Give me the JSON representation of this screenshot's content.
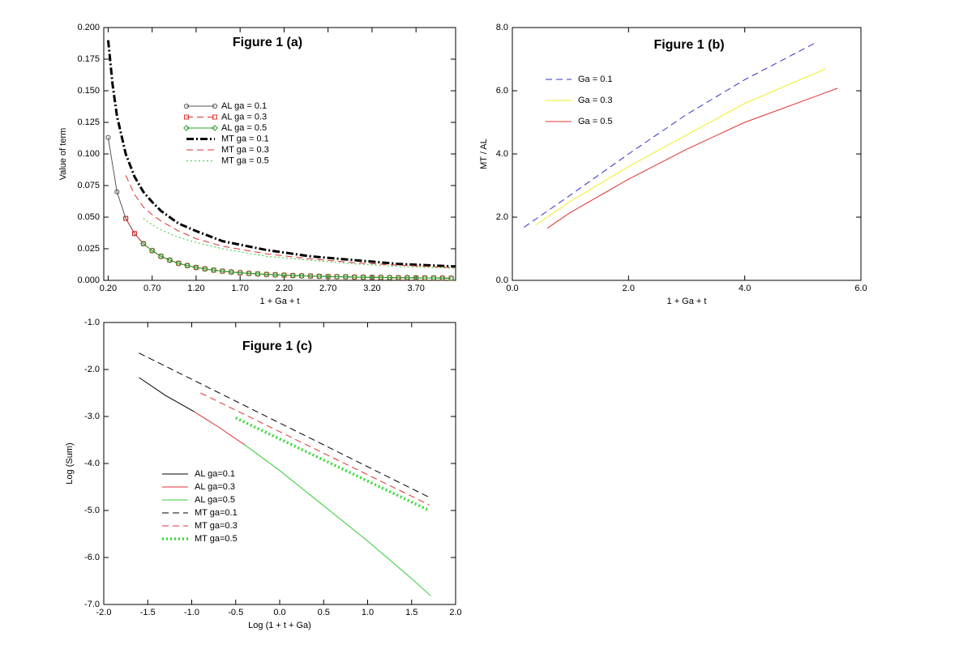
{
  "chart_data": [
    {
      "type": "line",
      "title": "Figure 1 (a)",
      "x_label": "1 + Ga + t",
      "y_label": "Value of term",
      "xlim": [
        0.15,
        4.15
      ],
      "xticks": [
        {
          "value": 0.2,
          "label": "0.20"
        },
        {
          "value": 0.7,
          "label": "0.70"
        },
        {
          "value": 1.2,
          "label": "1.20"
        },
        {
          "value": 1.7,
          "label": "1.70"
        },
        {
          "value": 2.2,
          "label": "2.20"
        },
        {
          "value": 2.7,
          "label": "2.70"
        },
        {
          "value": 3.2,
          "label": "3.20"
        },
        {
          "value": 3.7,
          "label": "3.70"
        }
      ],
      "ylim": [
        0,
        0.2
      ],
      "yticks": [
        {
          "value": 0,
          "label": "0.000"
        },
        {
          "value": 0.025,
          "label": "0.025"
        },
        {
          "value": 0.05,
          "label": "0.050"
        },
        {
          "value": 0.075,
          "label": "0.075"
        },
        {
          "value": 0.1,
          "label": "0.100"
        },
        {
          "value": 0.125,
          "label": "0.125"
        },
        {
          "value": 0.15,
          "label": "0.150"
        },
        {
          "value": 0.175,
          "label": "0.175"
        },
        {
          "value": 0.2,
          "label": "0.200"
        }
      ],
      "series": [
        {
          "name": "AL ga = 0.1",
          "color": "#555555",
          "dash": "solid",
          "width": 1,
          "marker": "circle",
          "x": [
            0.2,
            0.3,
            0.4,
            0.5,
            0.6,
            0.7,
            0.8,
            0.9,
            1.0,
            1.1,
            1.2,
            1.3,
            1.4,
            1.5,
            1.6,
            1.7,
            1.8,
            1.9,
            2.0,
            2.1,
            2.2,
            2.3,
            2.4,
            2.5,
            2.6,
            2.7,
            2.8,
            2.9,
            3.0,
            3.1,
            3.2,
            3.3,
            3.4,
            3.5,
            3.6,
            3.7,
            3.8,
            3.9,
            4.0,
            4.1
          ],
          "values": [
            0.113,
            0.07,
            0.049,
            0.037,
            0.029,
            0.0235,
            0.019,
            0.016,
            0.0135,
            0.0117,
            0.0102,
            0.0091,
            0.0081,
            0.0073,
            0.0066,
            0.006,
            0.0055,
            0.0051,
            0.0047,
            0.0044,
            0.0041,
            0.0038,
            0.0036,
            0.0034,
            0.0032,
            0.003,
            0.0029,
            0.0028,
            0.0026,
            0.0025,
            0.0024,
            0.0023,
            0.0022,
            0.0021,
            0.0021,
            0.002,
            0.0019,
            0.0019,
            0.0018,
            0.0017
          ]
        },
        {
          "name": "AL ga = 0.3",
          "color": "#e03030",
          "dash": "dashed",
          "width": 1,
          "marker": "square",
          "x": [
            0.4,
            0.5,
            0.6,
            0.7,
            0.8,
            0.9,
            1.0,
            1.1,
            1.2,
            1.3,
            1.4,
            1.5,
            1.6,
            1.7,
            1.8,
            1.9,
            2.0,
            2.1,
            2.2,
            2.3,
            2.4,
            2.5,
            2.6,
            2.7,
            2.8,
            2.9,
            3.0,
            3.1,
            3.2,
            3.3,
            3.4,
            3.5,
            3.6,
            3.7,
            3.8,
            3.9,
            4.0,
            4.1
          ],
          "values": [
            0.049,
            0.037,
            0.029,
            0.0235,
            0.019,
            0.016,
            0.0135,
            0.0117,
            0.0102,
            0.0091,
            0.0081,
            0.0073,
            0.0066,
            0.006,
            0.0055,
            0.0051,
            0.0047,
            0.0044,
            0.0041,
            0.0038,
            0.0036,
            0.0034,
            0.0032,
            0.003,
            0.0029,
            0.0028,
            0.0026,
            0.0025,
            0.0024,
            0.0023,
            0.0022,
            0.0021,
            0.0021,
            0.002,
            0.0019,
            0.0019,
            0.0018,
            0.0017
          ]
        },
        {
          "name": "AL ga = 0.5",
          "color": "#2e9e2e",
          "dash": "solid",
          "width": 1,
          "marker": "diamond",
          "x": [
            0.6,
            0.7,
            0.8,
            0.9,
            1.0,
            1.1,
            1.2,
            1.3,
            1.4,
            1.5,
            1.6,
            1.7,
            1.8,
            1.9,
            2.0,
            2.1,
            2.2,
            2.3,
            2.4,
            2.5,
            2.6,
            2.7,
            2.8,
            2.9,
            3.0,
            3.1,
            3.2,
            3.3,
            3.4,
            3.5,
            3.6,
            3.7,
            3.8,
            3.9,
            4.0,
            4.1
          ],
          "values": [
            0.029,
            0.0235,
            0.019,
            0.016,
            0.0135,
            0.0117,
            0.0102,
            0.0091,
            0.0081,
            0.0073,
            0.0066,
            0.006,
            0.0055,
            0.0051,
            0.0047,
            0.0044,
            0.0041,
            0.0038,
            0.0036,
            0.0034,
            0.0032,
            0.003,
            0.0029,
            0.0028,
            0.0026,
            0.0025,
            0.0024,
            0.0023,
            0.0022,
            0.0021,
            0.0021,
            0.002,
            0.0019,
            0.0019,
            0.0018,
            0.0017
          ]
        },
        {
          "name": "MT ga = 0.1",
          "color": "#000000",
          "dash": "dashdot",
          "width": 3,
          "x": [
            0.2,
            0.25,
            0.3,
            0.4,
            0.5,
            0.6,
            0.7,
            0.8,
            1.0,
            1.2,
            1.5,
            2.0,
            2.5,
            3.0,
            3.5,
            4.15
          ],
          "values": [
            0.19,
            0.155,
            0.13,
            0.1,
            0.082,
            0.07,
            0.062,
            0.055,
            0.045,
            0.039,
            0.031,
            0.024,
            0.019,
            0.016,
            0.013,
            0.011
          ]
        },
        {
          "name": "MT ga = 0.3",
          "color": "#e03030",
          "dash": "dashed",
          "width": 1,
          "x": [
            0.4,
            0.5,
            0.6,
            0.7,
            0.8,
            1.0,
            1.2,
            1.5,
            2.0,
            2.5,
            3.0,
            3.5,
            4.15
          ],
          "values": [
            0.083,
            0.068,
            0.058,
            0.052,
            0.047,
            0.039,
            0.033,
            0.027,
            0.021,
            0.017,
            0.014,
            0.012,
            0.01
          ]
        },
        {
          "name": "MT ga = 0.5",
          "color": "#33cc33",
          "dash": "dotted",
          "width": 1,
          "x": [
            0.6,
            0.7,
            0.8,
            1.0,
            1.2,
            1.5,
            2.0,
            2.5,
            3.0,
            3.5,
            4.15
          ],
          "values": [
            0.049,
            0.044,
            0.04,
            0.034,
            0.03,
            0.025,
            0.019,
            0.016,
            0.013,
            0.011,
            0.0095
          ]
        }
      ]
    },
    {
      "type": "line",
      "title": "Figure 1 (b)",
      "x_label": "1 + Ga + t",
      "y_label": "MT / AL",
      "xlim": [
        0,
        6
      ],
      "xticks": [
        {
          "value": 0,
          "label": "0.0"
        },
        {
          "value": 2,
          "label": "2.0"
        },
        {
          "value": 4,
          "label": "4.0"
        },
        {
          "value": 6,
          "label": "6.0"
        }
      ],
      "ylim": [
        0,
        8
      ],
      "yticks": [
        {
          "value": 0,
          "label": "0.0"
        },
        {
          "value": 2,
          "label": "2.0"
        },
        {
          "value": 4,
          "label": "4.0"
        },
        {
          "value": 6,
          "label": "6.0"
        },
        {
          "value": 8,
          "label": "8.0"
        }
      ],
      "series": [
        {
          "name": "Ga = 0.1",
          "color": "#3333cc",
          "dash": "dashed",
          "width": 1,
          "x": [
            0.2,
            1.0,
            2.0,
            3.0,
            4.0,
            5.2
          ],
          "values": [
            1.68,
            2.7,
            4.0,
            5.25,
            6.35,
            7.5
          ]
        },
        {
          "name": "Ga = 0.3",
          "color": "#eeee22",
          "dash": "solid",
          "width": 1,
          "x": [
            0.4,
            1.0,
            2.0,
            3.0,
            4.0,
            5.4
          ],
          "values": [
            1.75,
            2.5,
            3.6,
            4.6,
            5.6,
            6.7
          ]
        },
        {
          "name": "Ga = 0.5",
          "color": "#e03030",
          "dash": "solid",
          "width": 1,
          "x": [
            0.6,
            1.0,
            2.0,
            3.0,
            4.0,
            5.6
          ],
          "values": [
            1.65,
            2.15,
            3.2,
            4.15,
            5.0,
            6.08
          ]
        }
      ]
    },
    {
      "type": "line",
      "title": "Figure 1 (c)",
      "x_label": "Log (1 + t + Ga)",
      "y_label": "Log (Sum)",
      "xlim": [
        -2,
        2
      ],
      "xticks": [
        {
          "value": -2,
          "label": "-2.0"
        },
        -1.5,
        {
          "value": -1,
          "label": "-1.0"
        },
        -0.5,
        {
          "value": 0,
          "label": "0.0"
        },
        0.5,
        {
          "value": 1,
          "label": "1.0"
        },
        1.5,
        {
          "value": 2,
          "label": "2.0"
        }
      ],
      "ylim": [
        -7,
        -1
      ],
      "yticks": [
        {
          "value": -7,
          "label": "-7.0"
        },
        {
          "value": -6,
          "label": "-6.0"
        },
        {
          "value": -5,
          "label": "-5.0"
        },
        {
          "value": -4,
          "label": "-4.0"
        },
        {
          "value": -3,
          "label": "-3.0"
        },
        {
          "value": -2,
          "label": "-2.0"
        },
        {
          "value": -1,
          "label": "-1.0"
        }
      ],
      "series": [
        {
          "name": "AL ga=0.1",
          "color": "#000000",
          "dash": "solid",
          "width": 1,
          "x": [
            -1.6,
            -1.3,
            -0.97
          ],
          "values": [
            -2.17,
            -2.55,
            -2.9
          ]
        },
        {
          "name": "AL ga=0.3",
          "color": "#e03030",
          "dash": "solid",
          "width": 1,
          "x": [
            -0.97,
            -0.7,
            -0.4
          ],
          "values": [
            -2.9,
            -3.22,
            -3.6
          ]
        },
        {
          "name": "AL ga=0.5",
          "color": "#33cc33",
          "dash": "solid",
          "width": 1,
          "x": [
            -0.4,
            0,
            0.5,
            1.0,
            1.5,
            1.72
          ],
          "values": [
            -3.6,
            -4.15,
            -4.9,
            -5.65,
            -6.45,
            -6.82
          ]
        },
        {
          "name": "MT ga=0.1",
          "color": "#000000",
          "dash": "dashed",
          "width": 1,
          "x": [
            -1.6,
            1.7
          ],
          "values": [
            -1.65,
            -4.72
          ]
        },
        {
          "name": "MT ga=0.3",
          "color": "#e03030",
          "dash": "dashed",
          "width": 1,
          "x": [
            -0.9,
            1.7
          ],
          "values": [
            -2.5,
            -4.88
          ]
        },
        {
          "name": "MT ga=0.5",
          "color": "#33dd33",
          "dash": "dotted",
          "width": 3.5,
          "x": [
            -0.5,
            1.7
          ],
          "values": [
            -3.03,
            -5.0
          ]
        }
      ]
    }
  ]
}
